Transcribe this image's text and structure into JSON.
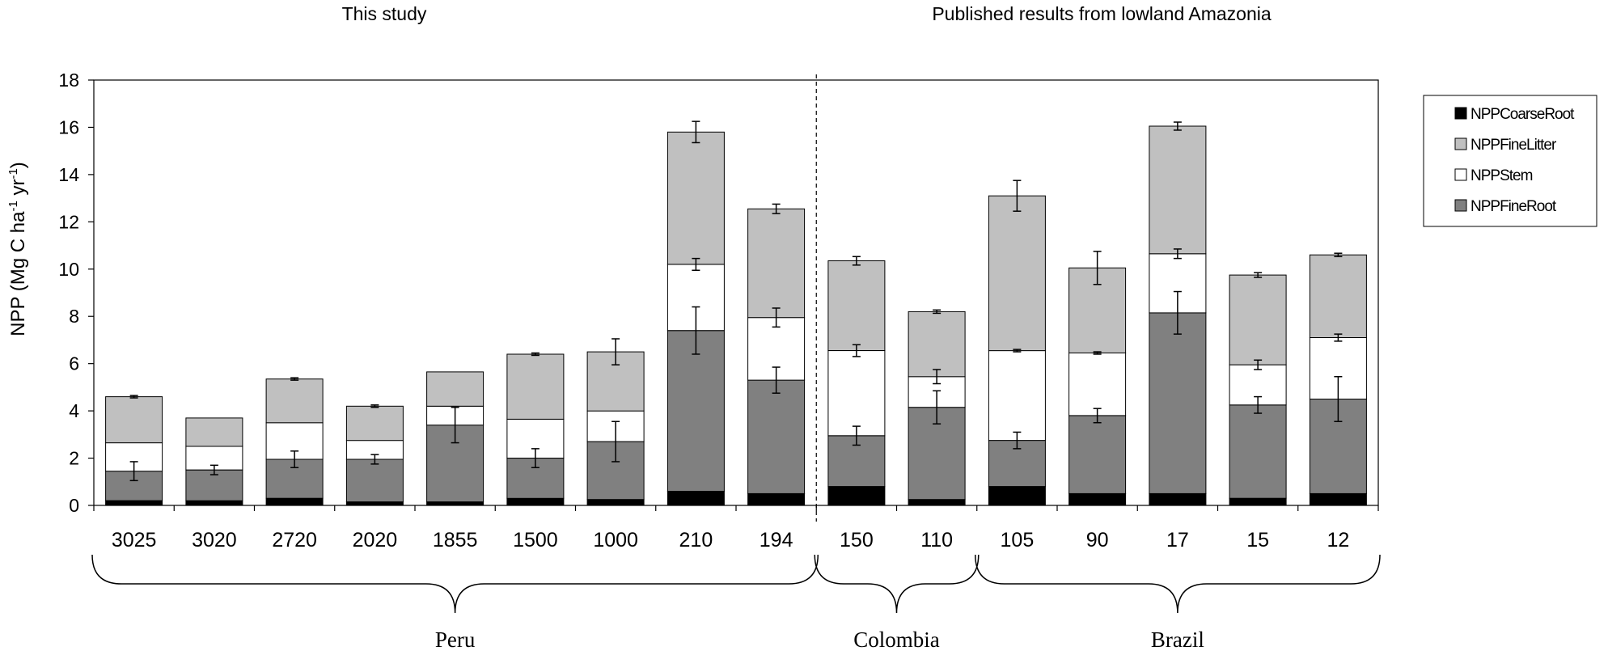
{
  "chart_data": {
    "type": "bar",
    "stacked": true,
    "ylabel_main": "NPP (Mg C ha",
    "ylabel_sup1": "-1",
    "ylabel_mid": " yr",
    "ylabel_sup2": "-1",
    "ylabel_end": ")",
    "ylim": [
      0,
      18
    ],
    "yticks": [
      "0",
      "2",
      "4",
      "6",
      "8",
      "10",
      "12",
      "14",
      "16",
      "18"
    ],
    "section_titles": [
      "This study",
      "Published results from lowland Amazonia"
    ],
    "categories": [
      "3025",
      "3020",
      "2720",
      "2020",
      "1855",
      "1500",
      "1000",
      "210",
      "194",
      "150",
      "110",
      "105",
      "90",
      "17",
      "15",
      "12"
    ],
    "regions": [
      {
        "name": "Peru",
        "from": 0,
        "to": 8
      },
      {
        "name": "Colombia",
        "from": 9,
        "to": 10
      },
      {
        "name": "Brazil",
        "from": 11,
        "to": 15
      }
    ],
    "series": [
      {
        "name": "NPPCoarseRoot",
        "color": "#000000",
        "values": [
          0.2,
          0.2,
          0.3,
          0.15,
          0.15,
          0.3,
          0.25,
          0.6,
          0.5,
          0.8,
          0.25,
          0.8,
          0.5,
          0.5,
          0.3,
          0.5
        ]
      },
      {
        "name": "NPPFineRoot",
        "color": "#808080",
        "values": [
          1.25,
          1.3,
          1.65,
          1.8,
          3.25,
          1.7,
          2.45,
          6.8,
          4.8,
          2.15,
          3.9,
          1.95,
          3.3,
          7.65,
          3.95,
          4.0
        ]
      },
      {
        "name": "NPPStem",
        "color": "#ffffff",
        "values": [
          1.2,
          1.0,
          1.55,
          0.8,
          0.8,
          1.65,
          1.3,
          2.8,
          2.65,
          3.6,
          1.3,
          3.8,
          2.65,
          2.5,
          1.7,
          2.6
        ]
      },
      {
        "name": "NPPFineLitter",
        "color": "#c0c0c0",
        "values": [
          1.95,
          1.2,
          1.85,
          1.45,
          1.45,
          2.75,
          2.5,
          5.6,
          4.6,
          3.8,
          2.75,
          6.55,
          3.6,
          5.4,
          3.8,
          3.5
        ]
      }
    ],
    "error_bars": {
      "NPPFineRoot": [
        0.4,
        0.2,
        0.35,
        0.2,
        0.75,
        0.4,
        0.85,
        1.0,
        0.55,
        0.4,
        0.7,
        0.35,
        0.3,
        0.9,
        0.35,
        0.95
      ],
      "NPPStem": [
        0,
        0,
        0,
        0,
        0,
        0,
        0,
        0.25,
        0.4,
        0.25,
        0.3,
        0.05,
        0.05,
        0.2,
        0.2,
        0.15
      ],
      "NPPFineLitter": [
        0.05,
        0,
        0.05,
        0.05,
        0,
        0.05,
        0.55,
        0.45,
        0.2,
        0.18,
        0.07,
        0.65,
        0.7,
        0.17,
        0.1,
        0.07
      ]
    },
    "legend": {
      "position": "right",
      "order": [
        "NPPCoarseRoot",
        "NPPFineLitter",
        "NPPStem",
        "NPPFineRoot"
      ]
    },
    "divider_after_index": 8,
    "grid": false
  }
}
